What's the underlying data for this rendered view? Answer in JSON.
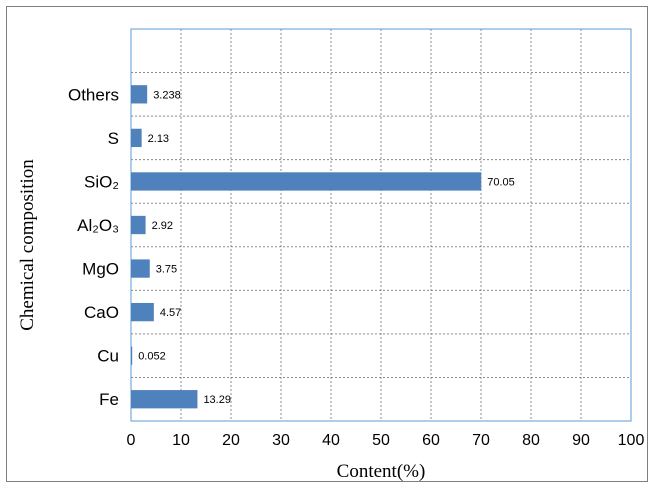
{
  "chart_data": {
    "type": "bar",
    "orientation": "horizontal",
    "title": "",
    "categories": [
      "Others",
      "S",
      "SiO₂",
      "Al₂O₃",
      "MgO",
      "CaO",
      "Cu",
      "Fe"
    ],
    "values": [
      3.238,
      2.13,
      70.05,
      2.92,
      3.75,
      4.57,
      0.052,
      13.29
    ],
    "data_labels": [
      "3.238",
      "2.13",
      "70.05",
      "2.92",
      "3.75",
      "4.57",
      "0.052",
      "13.29"
    ],
    "xlabel": "Content(%)",
    "ylabel": "Chemical composition",
    "xlim": [
      0,
      100
    ],
    "xticks": [
      "0",
      "10",
      "20",
      "30",
      "40",
      "50",
      "60",
      "70",
      "80",
      "90",
      "100"
    ],
    "grid": "dashed",
    "legend": "none",
    "colors": {
      "bar": "#4f81bd",
      "grid": "#8c8c8c",
      "plot_border": "#5b9bd5",
      "frame": "#7f7f7f"
    }
  }
}
